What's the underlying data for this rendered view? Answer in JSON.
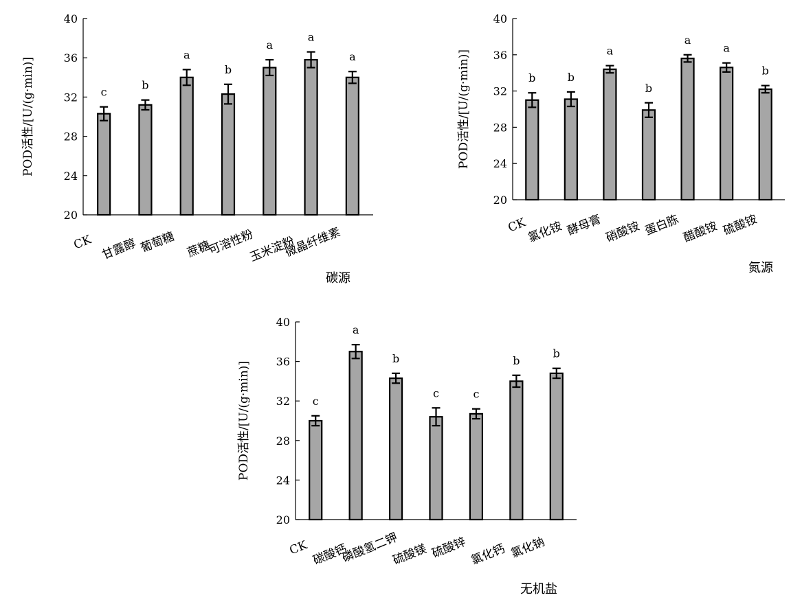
{
  "chart_data": [
    {
      "type": "bar",
      "id": "carbon",
      "ylabel": "POD活性/[U/(g·min)]",
      "xlabel": "碳源",
      "ylim": [
        20,
        40
      ],
      "yticks": [
        20,
        24,
        28,
        32,
        36,
        40
      ],
      "categories": [
        "CK",
        "甘露醇",
        "葡萄糖",
        "蔗糖",
        "可溶性粉",
        "玉米淀粉",
        "微晶纤维素"
      ],
      "values": [
        30.3,
        31.2,
        34.0,
        32.3,
        35.0,
        35.8,
        34.0
      ],
      "errors": [
        0.7,
        0.5,
        0.8,
        1.0,
        0.8,
        0.8,
        0.6
      ],
      "significance": [
        "c",
        "b",
        "a",
        "b",
        "a",
        "a",
        "a"
      ]
    },
    {
      "type": "bar",
      "id": "nitrogen",
      "ylabel": "POD活性/[U/(g·min)]",
      "xlabel": "氮源",
      "ylim": [
        20,
        40
      ],
      "yticks": [
        20,
        24,
        28,
        32,
        36,
        40
      ],
      "categories": [
        "CK",
        "氯化铵",
        "酵母膏",
        "硝酸铵",
        "蛋白胨",
        "醋酸铵",
        "硫酸铵"
      ],
      "values": [
        31.0,
        31.1,
        34.4,
        29.9,
        35.6,
        34.6,
        32.2
      ],
      "errors": [
        0.8,
        0.8,
        0.4,
        0.8,
        0.4,
        0.5,
        0.4
      ],
      "significance": [
        "b",
        "b",
        "a",
        "b",
        "a",
        "a",
        "b"
      ]
    },
    {
      "type": "bar",
      "id": "salt",
      "ylabel": "POD活性/[U/(g·min)]",
      "xlabel": "无机盐",
      "ylim": [
        20,
        40
      ],
      "yticks": [
        20,
        24,
        28,
        32,
        36,
        40
      ],
      "categories": [
        "CK",
        "碳酸钙",
        "磷酸氢二钾",
        "硫酸镁",
        "硫酸锌",
        "氯化钙",
        "氯化钠"
      ],
      "values": [
        30.0,
        37.0,
        34.3,
        30.4,
        30.7,
        34.0,
        34.8
      ],
      "errors": [
        0.5,
        0.7,
        0.5,
        0.9,
        0.5,
        0.6,
        0.5
      ],
      "significance": [
        "c",
        "a",
        "b",
        "c",
        "c",
        "b",
        "b"
      ]
    }
  ]
}
